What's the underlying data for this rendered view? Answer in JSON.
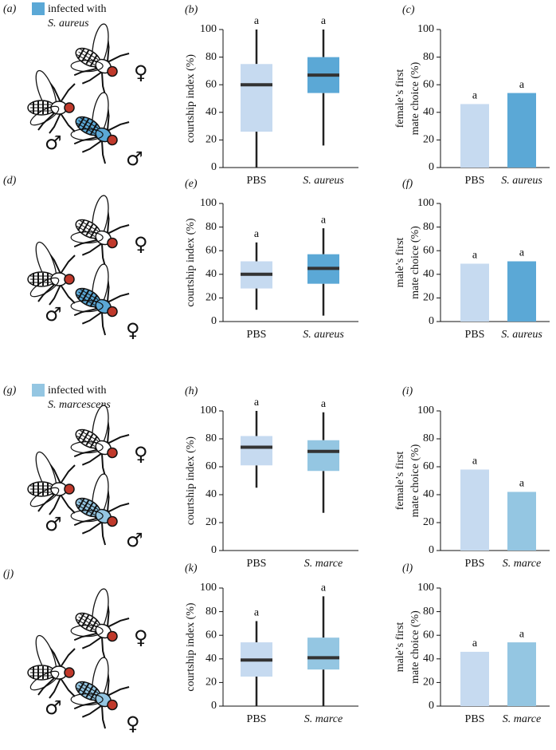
{
  "panels": [
    {
      "label": "(a)",
      "legend": [
        "infected with",
        "S. aureus"
      ],
      "infected_color": "#5ba8d6",
      "symbols": [
        "♀",
        "♂",
        "♂"
      ]
    },
    {
      "label": "(d)",
      "infected_color": "#5ba8d6",
      "symbols": [
        "♀",
        "♂",
        "♀"
      ]
    },
    {
      "label": "(g)",
      "legend": [
        "infected with",
        "S. marcescens"
      ],
      "infected_color": "#94c6e2",
      "symbols": [
        "♀",
        "♂",
        "♂"
      ]
    },
    {
      "label": "(j)",
      "infected_color": "#94c6e2",
      "symbols": [
        "♀",
        "♂",
        "♀"
      ]
    }
  ],
  "chart_data": [
    {
      "type": "box",
      "panel_label": "(b)",
      "y_label": "courtship index (%)",
      "categories": [
        "PBS",
        "S. aureus"
      ],
      "boxes": [
        {
          "min": 0,
          "q1": 26,
          "median": 60,
          "q3": 75,
          "max": 100,
          "color": "#c6daf0"
        },
        {
          "min": 16,
          "q1": 54,
          "median": 67,
          "q3": 80,
          "max": 100,
          "color": "#5ba8d6"
        }
      ],
      "annotations": [
        "a",
        "a"
      ],
      "ylim": [
        0,
        100
      ],
      "yticks": [
        0,
        20,
        40,
        60,
        80,
        100
      ]
    },
    {
      "type": "bar",
      "panel_label": "(c)",
      "y_label": [
        "female’s first",
        "mate choice (%)"
      ],
      "categories": [
        "PBS",
        "S. aureus"
      ],
      "values": [
        46,
        54
      ],
      "colors": [
        "#c6daf0",
        "#5ba8d6"
      ],
      "annotations": [
        "a",
        "a"
      ],
      "ylim": [
        0,
        100
      ],
      "yticks": [
        0,
        20,
        40,
        60,
        80,
        100
      ]
    },
    {
      "type": "box",
      "panel_label": "(e)",
      "y_label": "courtship index (%)",
      "categories": [
        "PBS",
        "S. aureus"
      ],
      "boxes": [
        {
          "min": 10,
          "q1": 28,
          "median": 40,
          "q3": 51,
          "max": 67,
          "color": "#c6daf0"
        },
        {
          "min": 5,
          "q1": 32,
          "median": 45,
          "q3": 57,
          "max": 79,
          "color": "#5ba8d6"
        }
      ],
      "annotations": [
        "a",
        "a"
      ],
      "ylim": [
        0,
        100
      ],
      "yticks": [
        0,
        20,
        40,
        60,
        80,
        100
      ]
    },
    {
      "type": "bar",
      "panel_label": "(f)",
      "y_label": [
        "male’s first",
        "mate choice (%)"
      ],
      "categories": [
        "PBS",
        "S. aureus"
      ],
      "values": [
        49,
        51
      ],
      "colors": [
        "#c6daf0",
        "#5ba8d6"
      ],
      "annotations": [
        "a",
        "a"
      ],
      "ylim": [
        0,
        100
      ],
      "yticks": [
        0,
        20,
        40,
        60,
        80,
        100
      ]
    },
    {
      "type": "box",
      "panel_label": "(h)",
      "y_label": "courtship index (%)",
      "categories": [
        "PBS",
        "S. marce"
      ],
      "boxes": [
        {
          "min": 45,
          "q1": 61,
          "median": 74,
          "q3": 82,
          "max": 100,
          "color": "#c6daf0"
        },
        {
          "min": 27,
          "q1": 57,
          "median": 71,
          "q3": 79,
          "max": 99,
          "color": "#94c6e2"
        }
      ],
      "annotations": [
        "a",
        "a"
      ],
      "ylim": [
        0,
        100
      ],
      "yticks": [
        0,
        20,
        40,
        60,
        80,
        100
      ]
    },
    {
      "type": "bar",
      "panel_label": "(i)",
      "y_label": [
        "female’s first",
        "mate choice (%)"
      ],
      "categories": [
        "PBS",
        "S. marce"
      ],
      "values": [
        58,
        42
      ],
      "colors": [
        "#c6daf0",
        "#94c6e2"
      ],
      "annotations": [
        "a",
        "a"
      ],
      "ylim": [
        0,
        100
      ],
      "yticks": [
        0,
        20,
        40,
        60,
        80,
        100
      ]
    },
    {
      "type": "box",
      "panel_label": "(k)",
      "y_label": "courtship index (%)",
      "categories": [
        "PBS",
        "S. marce"
      ],
      "boxes": [
        {
          "min": 0,
          "q1": 25,
          "median": 39,
          "q3": 54,
          "max": 72,
          "color": "#c6daf0"
        },
        {
          "min": 0,
          "q1": 31,
          "median": 41,
          "q3": 58,
          "max": 93,
          "color": "#94c6e2"
        }
      ],
      "annotations": [
        "a",
        "a"
      ],
      "ylim": [
        0,
        100
      ],
      "yticks": [
        0,
        20,
        40,
        60,
        80,
        100
      ]
    },
    {
      "type": "bar",
      "panel_label": "(l)",
      "y_label": [
        "male’s first",
        "mate choice (%)"
      ],
      "categories": [
        "PBS",
        "S. marce"
      ],
      "values": [
        46,
        54
      ],
      "colors": [
        "#c6daf0",
        "#94c6e2"
      ],
      "annotations": [
        "a",
        "a"
      ],
      "ylim": [
        0,
        100
      ],
      "yticks": [
        0,
        20,
        40,
        60,
        80,
        100
      ]
    }
  ]
}
